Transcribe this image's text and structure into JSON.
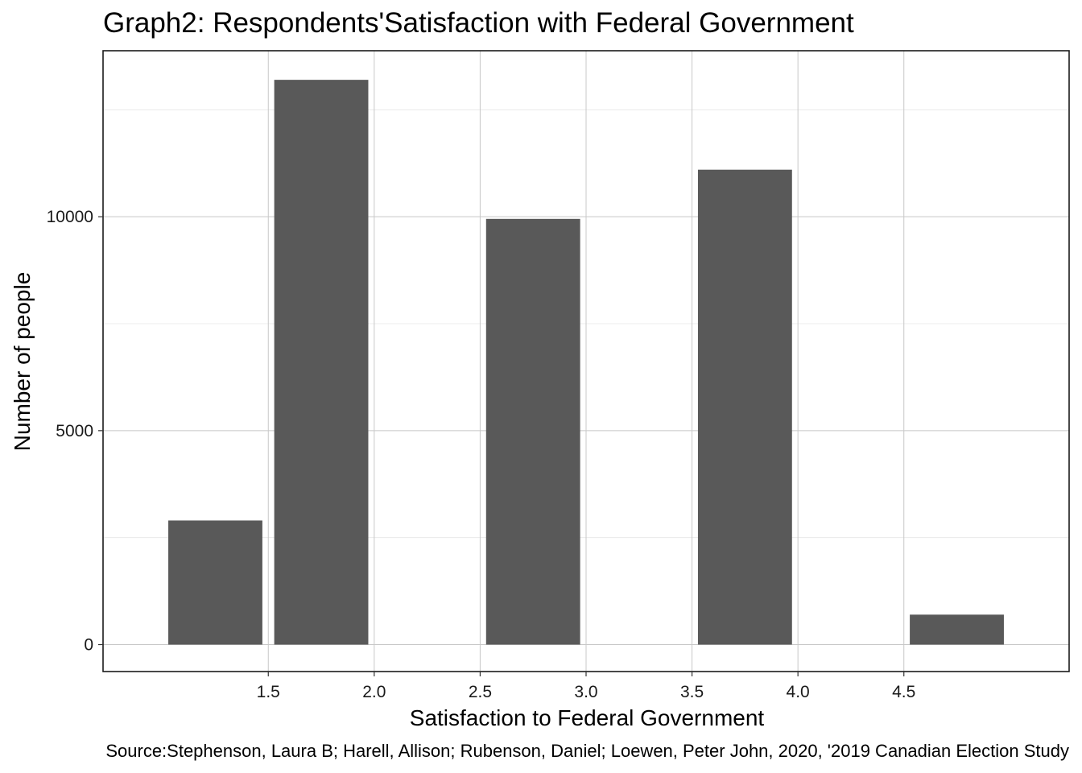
{
  "chart_data": {
    "type": "bar",
    "title": "Graph2: Respondents'Satisfaction with Federal Government",
    "xlabel": "Satisfaction to Federal Government",
    "ylabel": "Number of people",
    "caption": "Source:Stephenson, Laura B; Harell, Allison; Rubenson, Daniel; Loewen, Peter John, 2020, '2019 Canadian Election Study",
    "bin_width": 0.5,
    "bars": [
      {
        "x": 1.25,
        "value": 2900
      },
      {
        "x": 1.75,
        "value": 13200
      },
      {
        "x": 2.75,
        "value": 9950
      },
      {
        "x": 3.75,
        "value": 11100
      },
      {
        "x": 4.75,
        "value": 700
      }
    ],
    "xlim": [
      0.72,
      5.28
    ],
    "ylim": [
      -630,
      13880
    ],
    "x_ticks": [
      1.5,
      2.0,
      2.5,
      3.0,
      3.5,
      4.0,
      4.5
    ],
    "x_tick_labels": [
      "1.5",
      "2.0",
      "2.5",
      "3.0",
      "3.5",
      "4.0",
      "4.5"
    ],
    "y_ticks": [
      0,
      5000,
      10000
    ],
    "y_tick_labels": [
      "0",
      "5000",
      "10000"
    ],
    "y_minor_ticks": [
      2500,
      7500,
      12500
    ],
    "grid": true,
    "theme": "bw",
    "bar_color": "#595959"
  }
}
